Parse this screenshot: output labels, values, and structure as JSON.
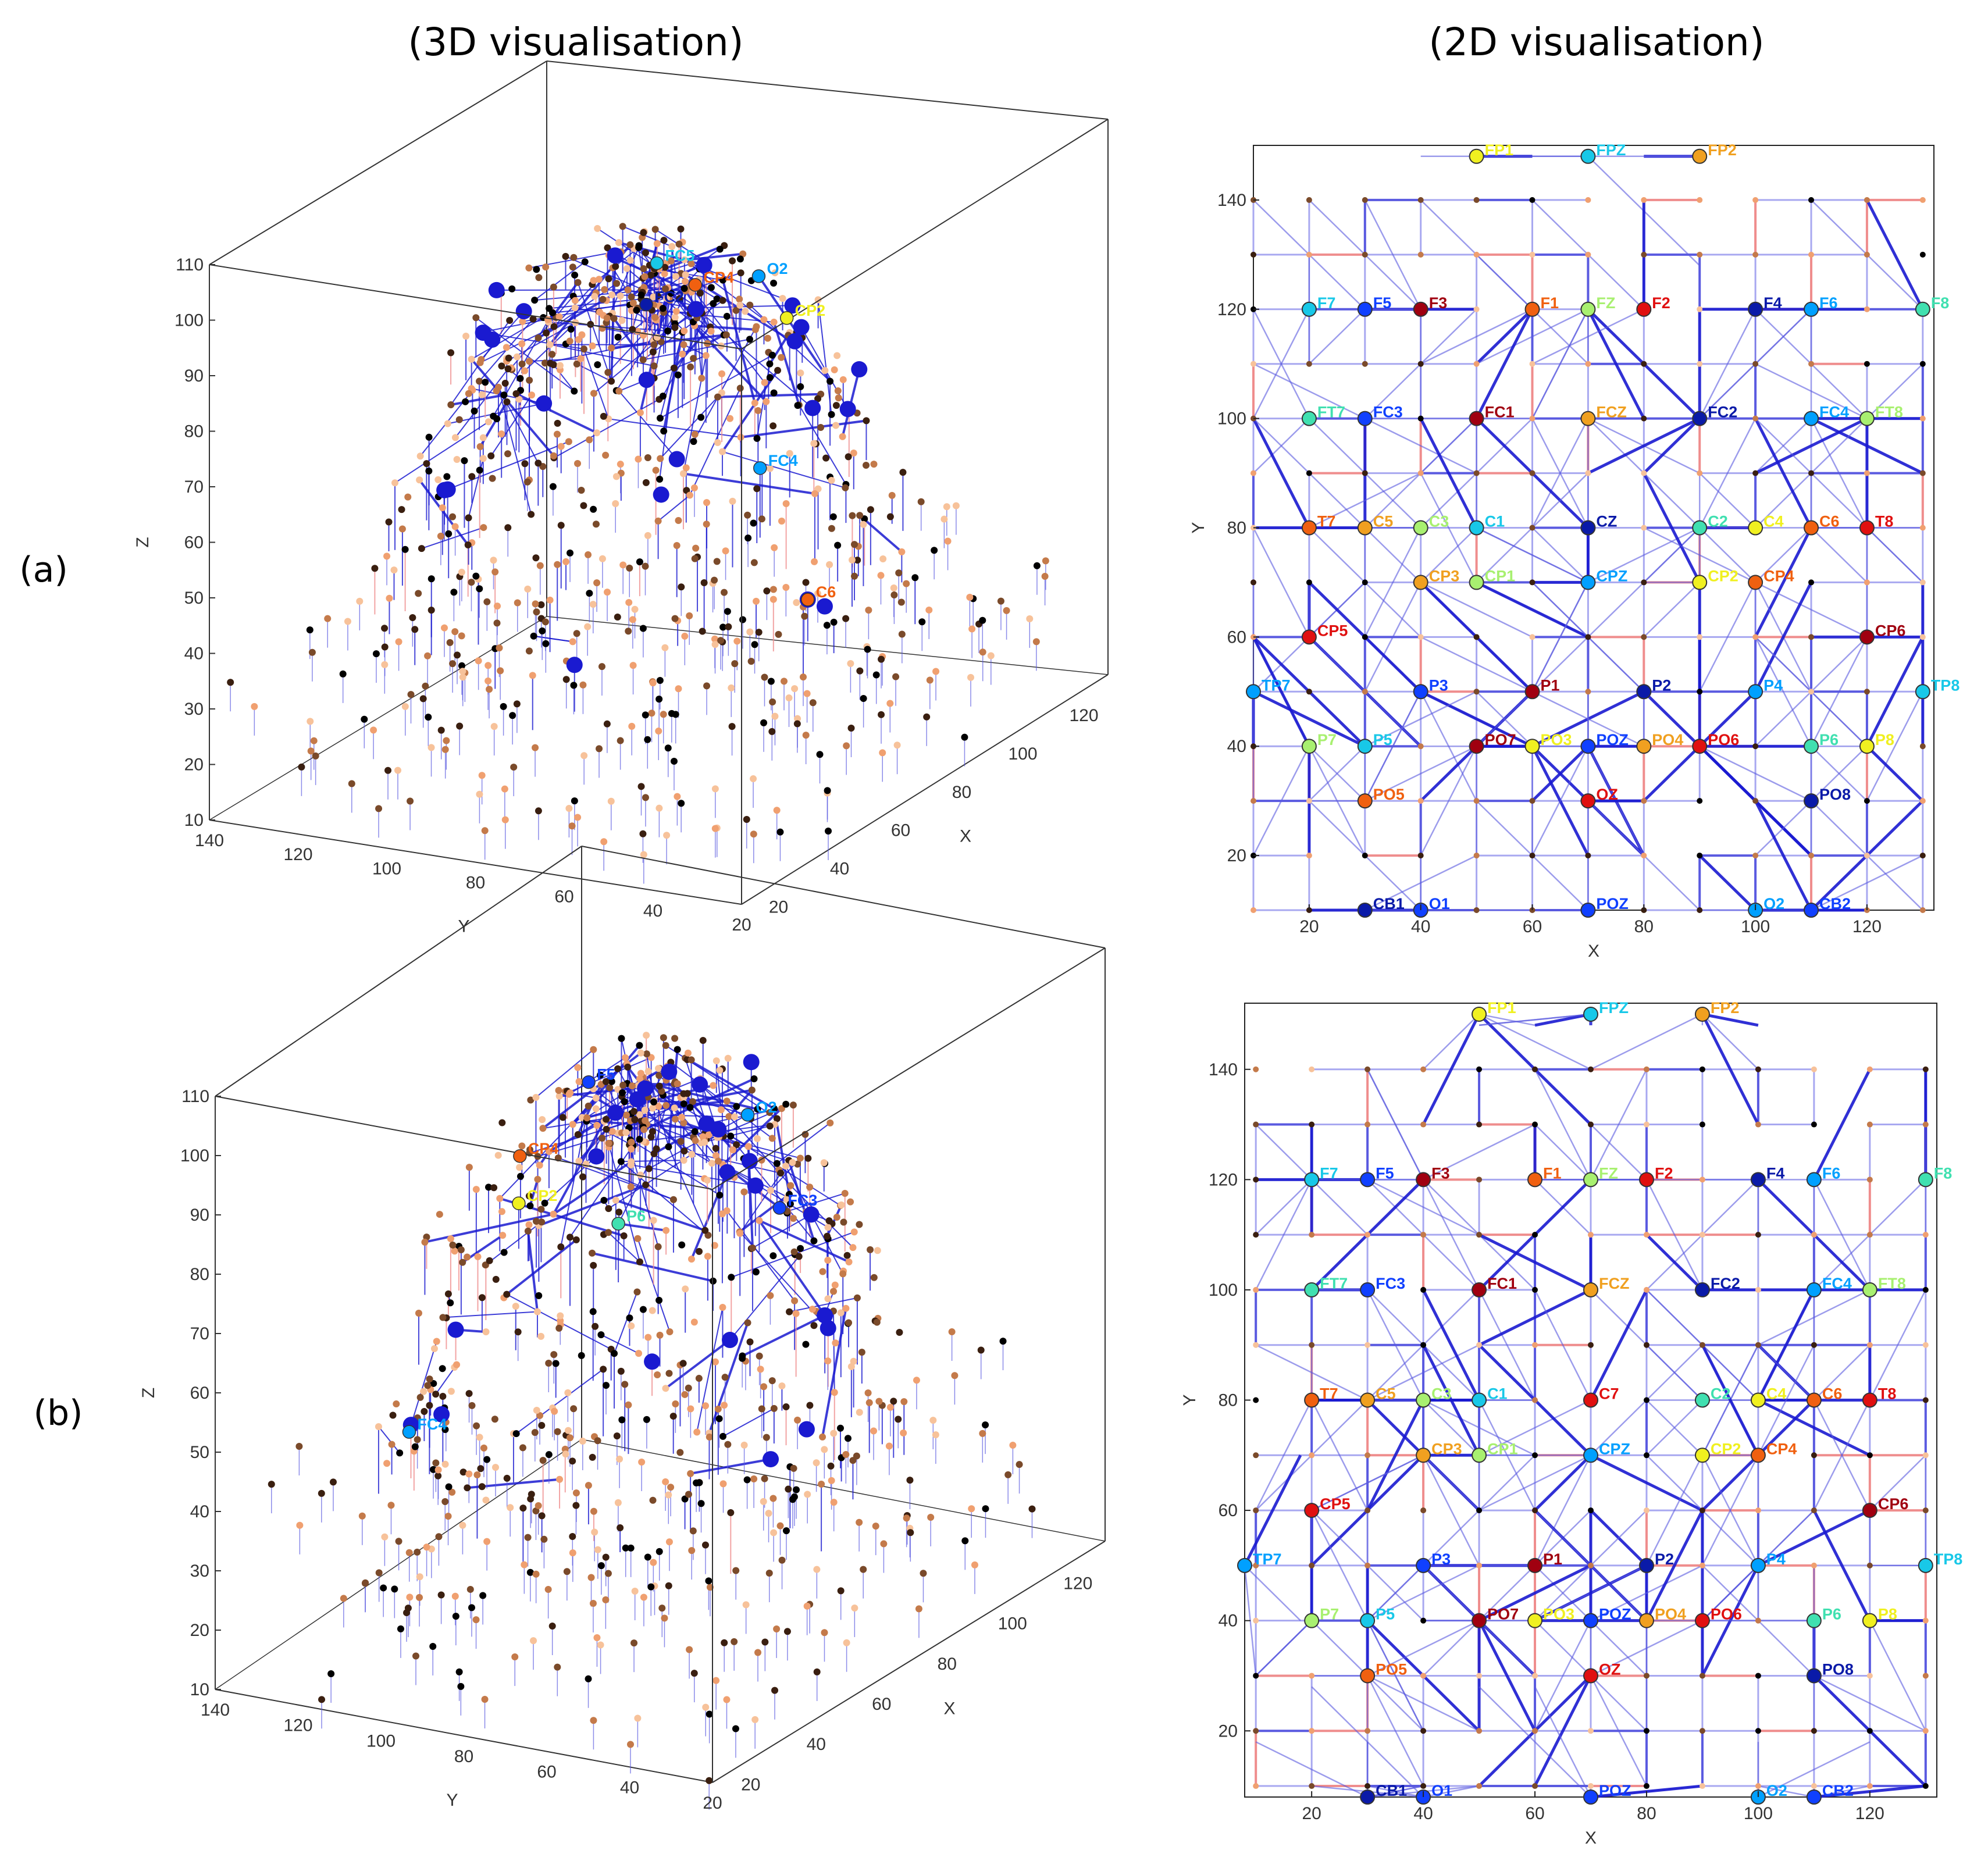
{
  "titles": {
    "left": "(3D visualisation)",
    "right": "(2D visualisation)"
  },
  "row_labels": [
    "(a)",
    "(b)"
  ],
  "colors": {
    "edge_strong": "#1a1ad0",
    "edge_mid": "#5a5ae0",
    "edge_weak": "#a8a8f0",
    "edge_neg": "#ef8d8d",
    "node_palette": [
      "#000000",
      "#3a1f10",
      "#7a4a2a",
      "#c47a4a",
      "#f0a070",
      "#f7c29a"
    ],
    "label_palette": [
      "#0a1aa8",
      "#1040ff",
      "#00a0ff",
      "#18c8e8",
      "#40e0b0",
      "#a8f070",
      "#f0f020",
      "#f0a020",
      "#f06010",
      "#e01010",
      "#a00010"
    ]
  },
  "chart_data": [
    {
      "id": "3d-a",
      "type": "scatter3d",
      "title": "(3D visualisation)",
      "panel": "(a)",
      "xlabel": "X",
      "ylabel": "Y",
      "zlabel": "Z",
      "xticks": [
        20,
        40,
        60,
        80,
        100,
        120
      ],
      "yticks": [
        140,
        120,
        100,
        80,
        60,
        40,
        20
      ],
      "zticks": [
        10,
        20,
        30,
        40,
        50,
        60,
        70,
        80,
        90,
        100,
        110
      ],
      "xlim": [
        10,
        130
      ],
      "ylim": [
        10,
        150
      ],
      "zlim": [
        10,
        110
      ],
      "labels": [
        "FC2",
        "CP4",
        "CP2",
        "FC4",
        "FC5",
        "O2",
        "C6"
      ]
    },
    {
      "id": "2d-a",
      "type": "scatter",
      "title": "(2D visualisation)",
      "panel": "(a)",
      "xlabel": "X",
      "ylabel": "Y",
      "xticks": [
        20,
        40,
        60,
        80,
        100,
        120
      ],
      "yticks": [
        20,
        40,
        60,
        80,
        100,
        120,
        140
      ],
      "xlim": [
        10,
        132
      ],
      "ylim": [
        10,
        150
      ],
      "electrodes": [
        {
          "label": "FP1",
          "x": 50,
          "y": 148
        },
        {
          "label": "FPZ",
          "x": 70,
          "y": 148
        },
        {
          "label": "FP2",
          "x": 90,
          "y": 148
        },
        {
          "label": "F7",
          "x": 20,
          "y": 120
        },
        {
          "label": "F5",
          "x": 30,
          "y": 120
        },
        {
          "label": "F3",
          "x": 40,
          "y": 120
        },
        {
          "label": "F1",
          "x": 60,
          "y": 120
        },
        {
          "label": "FZ",
          "x": 70,
          "y": 120
        },
        {
          "label": "F2",
          "x": 80,
          "y": 120
        },
        {
          "label": "F4",
          "x": 100,
          "y": 120
        },
        {
          "label": "F6",
          "x": 110,
          "y": 120
        },
        {
          "label": "F8",
          "x": 130,
          "y": 120
        },
        {
          "label": "FT7",
          "x": 20,
          "y": 100
        },
        {
          "label": "FC3",
          "x": 30,
          "y": 100
        },
        {
          "label": "FC1",
          "x": 50,
          "y": 100
        },
        {
          "label": "FCZ",
          "x": 70,
          "y": 100
        },
        {
          "label": "FC2",
          "x": 90,
          "y": 100
        },
        {
          "label": "FC4",
          "x": 110,
          "y": 100
        },
        {
          "label": "FT8",
          "x": 120,
          "y": 100
        },
        {
          "label": "T7",
          "x": 20,
          "y": 80
        },
        {
          "label": "C5",
          "x": 30,
          "y": 80
        },
        {
          "label": "C3",
          "x": 40,
          "y": 80
        },
        {
          "label": "C1",
          "x": 50,
          "y": 80
        },
        {
          "label": "CZ",
          "x": 70,
          "y": 80
        },
        {
          "label": "C2",
          "x": 90,
          "y": 80
        },
        {
          "label": "C4",
          "x": 100,
          "y": 80
        },
        {
          "label": "C6",
          "x": 110,
          "y": 80
        },
        {
          "label": "T8",
          "x": 120,
          "y": 80
        },
        {
          "label": "CP3",
          "x": 40,
          "y": 70
        },
        {
          "label": "CP1",
          "x": 50,
          "y": 70
        },
        {
          "label": "CPZ",
          "x": 70,
          "y": 70
        },
        {
          "label": "CP2",
          "x": 90,
          "y": 70
        },
        {
          "label": "CP4",
          "x": 100,
          "y": 70
        },
        {
          "label": "CP5",
          "x": 20,
          "y": 60
        },
        {
          "label": "CP6",
          "x": 120,
          "y": 60
        },
        {
          "label": "TP7",
          "x": 10,
          "y": 50
        },
        {
          "label": "P3",
          "x": 40,
          "y": 50
        },
        {
          "label": "P1",
          "x": 60,
          "y": 50
        },
        {
          "label": "P2",
          "x": 80,
          "y": 50
        },
        {
          "label": "P4",
          "x": 100,
          "y": 50
        },
        {
          "label": "TP8",
          "x": 130,
          "y": 50
        },
        {
          "label": "P7",
          "x": 20,
          "y": 40
        },
        {
          "label": "P5",
          "x": 30,
          "y": 40
        },
        {
          "label": "PO7",
          "x": 50,
          "y": 40
        },
        {
          "label": "PO3",
          "x": 60,
          "y": 40
        },
        {
          "label": "POZ",
          "x": 70,
          "y": 40
        },
        {
          "label": "PO4",
          "x": 80,
          "y": 40
        },
        {
          "label": "PO6",
          "x": 90,
          "y": 40
        },
        {
          "label": "P6",
          "x": 110,
          "y": 40
        },
        {
          "label": "P8",
          "x": 120,
          "y": 40
        },
        {
          "label": "PO5",
          "x": 30,
          "y": 30
        },
        {
          "label": "OZ",
          "x": 70,
          "y": 30
        },
        {
          "label": "PO8",
          "x": 110,
          "y": 30
        },
        {
          "label": "CB1",
          "x": 30,
          "y": 10
        },
        {
          "label": "O1",
          "x": 40,
          "y": 10
        },
        {
          "label": "POZ",
          "x": 70,
          "y": 10
        },
        {
          "label": "O2",
          "x": 100,
          "y": 10
        },
        {
          "label": "CB2",
          "x": 110,
          "y": 10
        }
      ]
    },
    {
      "id": "3d-b",
      "type": "scatter3d",
      "title": "(3D visualisation)",
      "panel": "(b)",
      "xlabel": "X",
      "ylabel": "Y",
      "zlabel": "Z",
      "xticks": [
        20,
        40,
        60,
        80,
        100,
        120
      ],
      "yticks": [
        140,
        120,
        100,
        80,
        60,
        40,
        20
      ],
      "zticks": [
        10,
        20,
        30,
        40,
        50,
        60,
        70,
        80,
        90,
        100,
        110
      ],
      "xlim": [
        10,
        130
      ],
      "ylim": [
        10,
        150
      ],
      "zlim": [
        10,
        110
      ],
      "labels": [
        "FC3",
        "CP4",
        "CP2",
        "FC4",
        "P6",
        "O2",
        "F5"
      ]
    },
    {
      "id": "2d-b",
      "type": "scatter",
      "title": "(2D visualisation)",
      "panel": "(b)",
      "xlabel": "X",
      "ylabel": "Y",
      "xticks": [
        20,
        40,
        60,
        80,
        100,
        120
      ],
      "yticks": [
        20,
        40,
        60,
        80,
        100,
        120,
        140
      ],
      "xlim": [
        8,
        132
      ],
      "ylim": [
        8,
        152
      ],
      "electrodes": [
        {
          "label": "FP1",
          "x": 50,
          "y": 150
        },
        {
          "label": "FPZ",
          "x": 70,
          "y": 150
        },
        {
          "label": "FP2",
          "x": 90,
          "y": 150
        },
        {
          "label": "F7",
          "x": 20,
          "y": 120
        },
        {
          "label": "F5",
          "x": 30,
          "y": 120
        },
        {
          "label": "F3",
          "x": 40,
          "y": 120
        },
        {
          "label": "F1",
          "x": 60,
          "y": 120
        },
        {
          "label": "FZ",
          "x": 70,
          "y": 120
        },
        {
          "label": "F2",
          "x": 80,
          "y": 120
        },
        {
          "label": "F4",
          "x": 100,
          "y": 120
        },
        {
          "label": "F6",
          "x": 110,
          "y": 120
        },
        {
          "label": "F8",
          "x": 130,
          "y": 120
        },
        {
          "label": "FT7",
          "x": 20,
          "y": 100
        },
        {
          "label": "FC3",
          "x": 30,
          "y": 100
        },
        {
          "label": "FC1",
          "x": 50,
          "y": 100
        },
        {
          "label": "FCZ",
          "x": 70,
          "y": 100
        },
        {
          "label": "FC2",
          "x": 90,
          "y": 100
        },
        {
          "label": "FC4",
          "x": 110,
          "y": 100
        },
        {
          "label": "FT8",
          "x": 120,
          "y": 100
        },
        {
          "label": "T7",
          "x": 20,
          "y": 80
        },
        {
          "label": "C5",
          "x": 30,
          "y": 80
        },
        {
          "label": "C3",
          "x": 40,
          "y": 80
        },
        {
          "label": "C1",
          "x": 50,
          "y": 80
        },
        {
          "label": "C7",
          "x": 70,
          "y": 80
        },
        {
          "label": "C2",
          "x": 90,
          "y": 80
        },
        {
          "label": "C4",
          "x": 100,
          "y": 80
        },
        {
          "label": "C6",
          "x": 110,
          "y": 80
        },
        {
          "label": "T8",
          "x": 120,
          "y": 80
        },
        {
          "label": "CP3",
          "x": 40,
          "y": 70
        },
        {
          "label": "CP1",
          "x": 50,
          "y": 70
        },
        {
          "label": "CPZ",
          "x": 70,
          "y": 70
        },
        {
          "label": "CP2",
          "x": 90,
          "y": 70
        },
        {
          "label": "CP4",
          "x": 100,
          "y": 70
        },
        {
          "label": "CP5",
          "x": 20,
          "y": 60
        },
        {
          "label": "CP6",
          "x": 120,
          "y": 60
        },
        {
          "label": "TP7",
          "x": 8,
          "y": 50
        },
        {
          "label": "P3",
          "x": 40,
          "y": 50
        },
        {
          "label": "P1",
          "x": 60,
          "y": 50
        },
        {
          "label": "P2",
          "x": 80,
          "y": 50
        },
        {
          "label": "P4",
          "x": 100,
          "y": 50
        },
        {
          "label": "TP8",
          "x": 130,
          "y": 50
        },
        {
          "label": "P7",
          "x": 20,
          "y": 40
        },
        {
          "label": "P5",
          "x": 30,
          "y": 40
        },
        {
          "label": "PO7",
          "x": 50,
          "y": 40
        },
        {
          "label": "PO3",
          "x": 60,
          "y": 40
        },
        {
          "label": "POZ",
          "x": 70,
          "y": 40
        },
        {
          "label": "PO4",
          "x": 80,
          "y": 40
        },
        {
          "label": "PO6",
          "x": 90,
          "y": 40
        },
        {
          "label": "P6",
          "x": 110,
          "y": 40
        },
        {
          "label": "P8",
          "x": 120,
          "y": 40
        },
        {
          "label": "PO5",
          "x": 30,
          "y": 30
        },
        {
          "label": "OZ",
          "x": 70,
          "y": 30
        },
        {
          "label": "PO8",
          "x": 110,
          "y": 30
        },
        {
          "label": "CB1",
          "x": 30,
          "y": 8
        },
        {
          "label": "O1",
          "x": 40,
          "y": 8
        },
        {
          "label": "POZ",
          "x": 70,
          "y": 8
        },
        {
          "label": "O2",
          "x": 100,
          "y": 8
        },
        {
          "label": "CB2",
          "x": 110,
          "y": 8
        }
      ]
    }
  ]
}
